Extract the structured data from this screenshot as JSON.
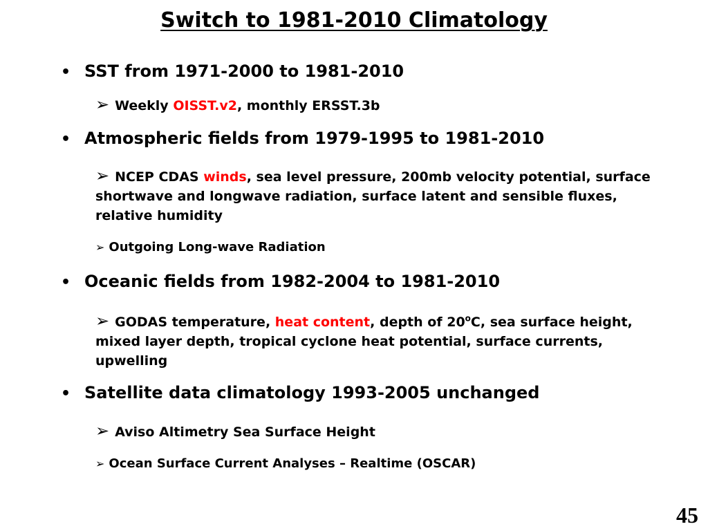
{
  "title": "Switch to 1981-2010 Climatology",
  "bullets": [
    {
      "text": "SST from 1971-2000 to 1981-2010",
      "subs": [
        {
          "pre": "Weekly ",
          "red": "OISST.v2",
          "post": ", monthly ERSST.3b"
        }
      ]
    },
    {
      "text": "Atmospheric fields from 1979-1995 to 1981-2010",
      "subs": [
        {
          "pre": "NCEP CDAS ",
          "red": "winds",
          "post": ", sea level pressure, 200mb velocity potential, surface shortwave and longwave radiation, surface latent and sensible fluxes, relative humidity"
        },
        {
          "text": "Outgoing Long-wave Radiation"
        }
      ]
    },
    {
      "text": "Oceanic fields from 1982-2004 to 1981-2010",
      "subs": [
        {
          "pre": "GODAS temperature, ",
          "red": "heat content",
          "mid": ", depth of 20",
          "sup": "o",
          "post": "C, sea surface height, mixed layer depth, tropical cyclone heat potential, surface currents, upwelling"
        }
      ]
    },
    {
      "text": "Satellite data climatology 1993-2005 unchanged",
      "subs": [
        {
          "text": "Aviso Altimetry Sea Surface Height"
        },
        {
          "text": "Ocean Surface Current Analyses – Realtime (OSCAR)"
        }
      ]
    }
  ],
  "page_number": "45"
}
